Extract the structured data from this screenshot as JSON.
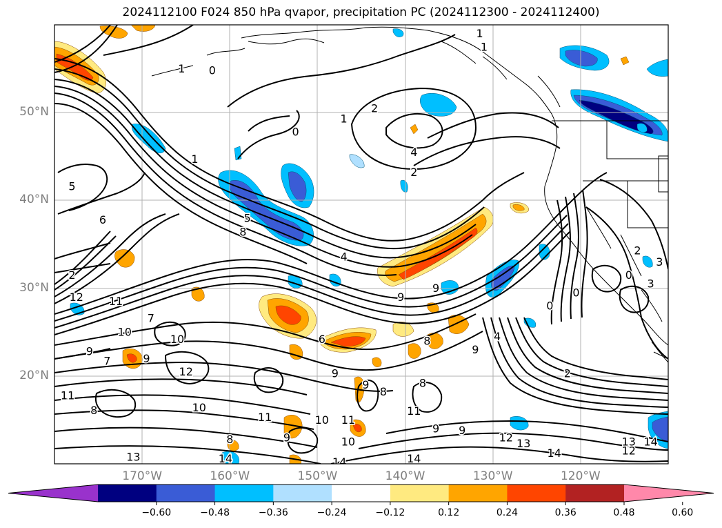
{
  "title": "2024112100 F024 850 hPa qvapor, precipitation PC (2024112300 - 2024112400)",
  "map": {
    "lon_range": [
      -180,
      -110
    ],
    "lat_range": [
      10,
      60
    ],
    "lat_labels": [
      {
        "value": 50,
        "text": "50°N"
      },
      {
        "value": 40,
        "text": "40°N"
      },
      {
        "value": 30,
        "text": "30°N"
      },
      {
        "value": 20,
        "text": "20°N"
      }
    ],
    "lon_labels": [
      {
        "value": -170,
        "text": "170°W"
      },
      {
        "value": -160,
        "text": "160°W"
      },
      {
        "value": -150,
        "text": "150°W"
      },
      {
        "value": -140,
        "text": "140°W"
      },
      {
        "value": -130,
        "text": "130°W"
      },
      {
        "value": -120,
        "text": "120°W"
      }
    ],
    "grid": true,
    "contour_labels": [
      {
        "text": "1",
        "lon": -165.5,
        "lat": 55.0
      },
      {
        "text": "0",
        "lon": -162.0,
        "lat": 54.8
      },
      {
        "text": "1",
        "lon": -147.0,
        "lat": 49.3
      },
      {
        "text": "2",
        "lon": -143.5,
        "lat": 50.5
      },
      {
        "text": "1",
        "lon": -131.5,
        "lat": 59.0
      },
      {
        "text": "1",
        "lon": -131.0,
        "lat": 57.5
      },
      {
        "text": "0",
        "lon": -152.5,
        "lat": 47.8
      },
      {
        "text": "4",
        "lon": -139.0,
        "lat": 45.5
      },
      {
        "text": "2",
        "lon": -139.0,
        "lat": 43.2
      },
      {
        "text": "5",
        "lon": -178.0,
        "lat": 41.6
      },
      {
        "text": "6",
        "lon": -174.5,
        "lat": 37.8
      },
      {
        "text": "5",
        "lon": -158.0,
        "lat": 38.0
      },
      {
        "text": "8",
        "lon": -158.5,
        "lat": 36.4
      },
      {
        "text": "4",
        "lon": -147.0,
        "lat": 33.6
      },
      {
        "text": "1",
        "lon": -164.0,
        "lat": 44.7
      },
      {
        "text": "2",
        "lon": -178.0,
        "lat": 31.5
      },
      {
        "text": "12",
        "lon": -177.5,
        "lat": 29.0
      },
      {
        "text": "11",
        "lon": -173.0,
        "lat": 28.5
      },
      {
        "text": "10",
        "lon": -172.0,
        "lat": 25.0
      },
      {
        "text": "7",
        "lon": -169.0,
        "lat": 26.6
      },
      {
        "text": "10",
        "lon": -166.0,
        "lat": 24.2
      },
      {
        "text": "9",
        "lon": -176.0,
        "lat": 22.8
      },
      {
        "text": "7",
        "lon": -174.0,
        "lat": 21.7
      },
      {
        "text": "9",
        "lon": -169.5,
        "lat": 22.0
      },
      {
        "text": "12",
        "lon": -165.0,
        "lat": 20.5
      },
      {
        "text": "11",
        "lon": -178.5,
        "lat": 17.8
      },
      {
        "text": "8",
        "lon": -175.5,
        "lat": 16.1
      },
      {
        "text": "10",
        "lon": -163.5,
        "lat": 16.4
      },
      {
        "text": "11",
        "lon": -156.0,
        "lat": 15.3
      },
      {
        "text": "9",
        "lon": -153.5,
        "lat": 13.0
      },
      {
        "text": "8",
        "lon": -160.0,
        "lat": 12.8
      },
      {
        "text": "10",
        "lon": -149.5,
        "lat": 15.0
      },
      {
        "text": "11",
        "lon": -146.5,
        "lat": 15.0
      },
      {
        "text": "10",
        "lon": -146.5,
        "lat": 12.5
      },
      {
        "text": "14",
        "lon": -160.5,
        "lat": 10.6
      },
      {
        "text": "13",
        "lon": -171.0,
        "lat": 10.8
      },
      {
        "text": "14",
        "lon": -147.5,
        "lat": 10.2
      },
      {
        "text": "14",
        "lon": -139.0,
        "lat": 10.6
      },
      {
        "text": "9",
        "lon": -144.5,
        "lat": 19.0
      },
      {
        "text": "8",
        "lon": -142.5,
        "lat": 18.2
      },
      {
        "text": "8",
        "lon": -138.0,
        "lat": 19.2
      },
      {
        "text": "9",
        "lon": -140.5,
        "lat": 29.0
      },
      {
        "text": "9",
        "lon": -136.5,
        "lat": 30.0
      },
      {
        "text": "9",
        "lon": -132.0,
        "lat": 23.0
      },
      {
        "text": "8",
        "lon": -137.5,
        "lat": 24.0
      },
      {
        "text": "6",
        "lon": -149.5,
        "lat": 24.2
      },
      {
        "text": "9",
        "lon": -148.0,
        "lat": 20.3
      },
      {
        "text": "11",
        "lon": -139.0,
        "lat": 16.0
      },
      {
        "text": "9",
        "lon": -136.5,
        "lat": 14.0
      },
      {
        "text": "9",
        "lon": -133.5,
        "lat": 13.8
      },
      {
        "text": "12",
        "lon": -128.5,
        "lat": 13.0
      },
      {
        "text": "13",
        "lon": -126.5,
        "lat": 12.3
      },
      {
        "text": "14",
        "lon": -123.0,
        "lat": 11.2
      },
      {
        "text": "13",
        "lon": -114.5,
        "lat": 12.5
      },
      {
        "text": "14",
        "lon": -112.0,
        "lat": 12.5
      },
      {
        "text": "12",
        "lon": -114.5,
        "lat": 11.5
      },
      {
        "text": "2",
        "lon": -121.5,
        "lat": 20.3
      },
      {
        "text": "4",
        "lon": -129.5,
        "lat": 24.5
      },
      {
        "text": "0",
        "lon": -123.5,
        "lat": 28.0
      },
      {
        "text": "0",
        "lon": -120.5,
        "lat": 29.5
      },
      {
        "text": "0",
        "lon": -114.5,
        "lat": 31.5
      },
      {
        "text": "2",
        "lon": -113.5,
        "lat": 34.3
      },
      {
        "text": "3",
        "lon": -112.0,
        "lat": 30.5
      },
      {
        "text": "3",
        "lon": -111.0,
        "lat": 33.0
      }
    ]
  },
  "colorbar": {
    "colors": [
      "#9932cc",
      "#000080",
      "#3a5cd6",
      "#00bfff",
      "#b0e0ff",
      "#ffffff",
      "#ffea80",
      "#ffa500",
      "#ff4500",
      "#b22222",
      "#ff88aa"
    ],
    "tick_labels": [
      "−0.60",
      "−0.48",
      "−0.36",
      "−0.24",
      "−0.12",
      "0.12",
      "0.24",
      "0.36",
      "0.48",
      "0.60"
    ]
  }
}
